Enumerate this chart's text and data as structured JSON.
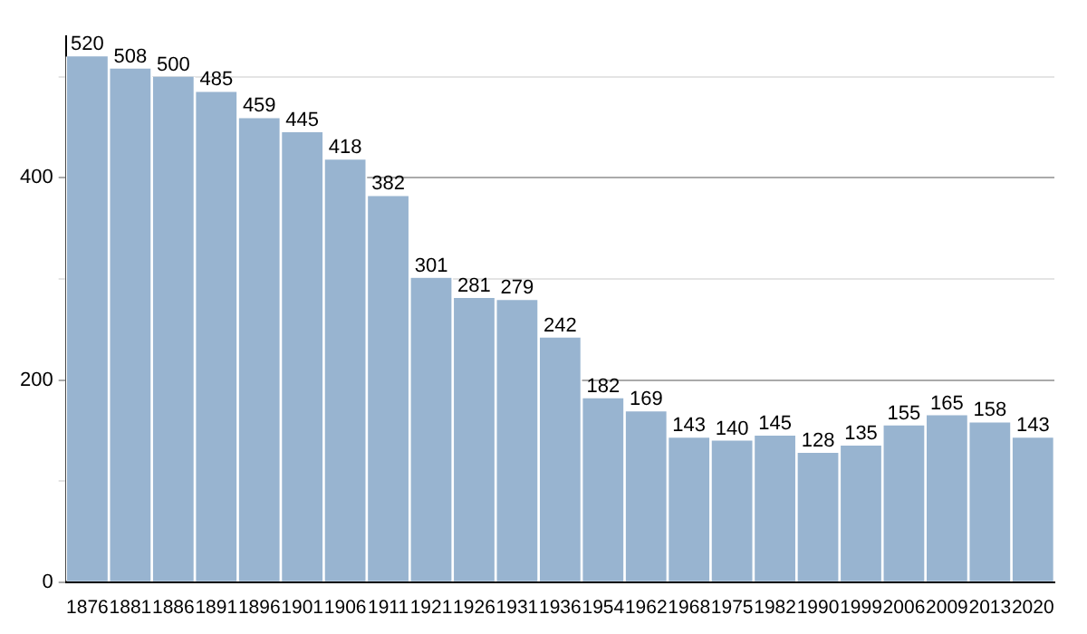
{
  "chart_data": {
    "type": "bar",
    "categories": [
      "1876",
      "1881",
      "1886",
      "1891",
      "1896",
      "1901",
      "1906",
      "1911",
      "1921",
      "1926",
      "1931",
      "1936",
      "1954",
      "1962",
      "1968",
      "1975",
      "1982",
      "1990",
      "1999",
      "2006",
      "2009",
      "2013",
      "2020"
    ],
    "values": [
      520,
      508,
      500,
      485,
      459,
      445,
      418,
      382,
      301,
      281,
      279,
      242,
      182,
      169,
      143,
      140,
      145,
      128,
      135,
      155,
      165,
      158,
      143
    ],
    "color": "#98b4d0",
    "ylim": [
      0,
      540
    ],
    "yticks": [
      0,
      {
        "value": 100,
        "label": null
      },
      200,
      {
        "value": 300,
        "label": null
      },
      400,
      {
        "value": 500,
        "label": null
      }
    ],
    "grid": "y",
    "data_labels": true,
    "legend": false
  }
}
